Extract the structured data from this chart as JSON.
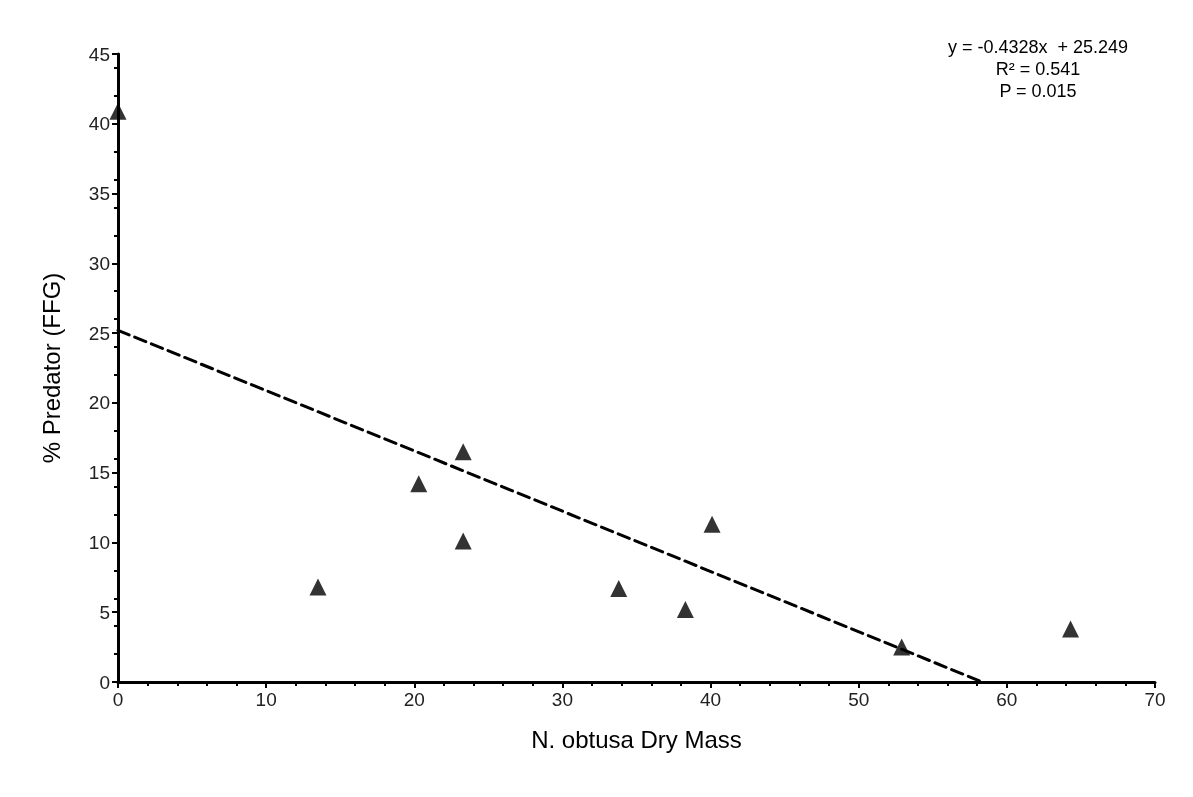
{
  "chart_data": {
    "type": "scatter",
    "xlabel": "N. obtusa Dry Mass",
    "ylabel": "% Predator (FFG)",
    "xlim": [
      0,
      70
    ],
    "xticks": [
      0,
      10,
      20,
      30,
      40,
      50,
      60,
      70
    ],
    "ylim": [
      0,
      45
    ],
    "yticks": [
      0,
      5,
      10,
      15,
      20,
      25,
      30,
      35,
      40,
      45
    ],
    "grid": false,
    "marker": "triangle",
    "annotations": [
      "y = -0.4328x  + 25.249",
      "R² = 0.541",
      "P = 0.015"
    ],
    "series": [
      {
        "color": "#000000",
        "x": [
          0,
          13.5,
          20.3,
          23.3,
          23.3,
          33.8,
          38.3,
          40.1,
          52.9,
          64.3
        ],
        "values": [
          40.9,
          6.8,
          14.2,
          16.5,
          10.1,
          6.7,
          5.2,
          11.3,
          2.5,
          3.8
        ]
      },
      {
        "type": "line",
        "color": "#000000",
        "line_style": "dashed",
        "marker": "none",
        "x": [
          0,
          58.34
        ],
        "values": [
          25.2,
          0
        ]
      }
    ]
  }
}
